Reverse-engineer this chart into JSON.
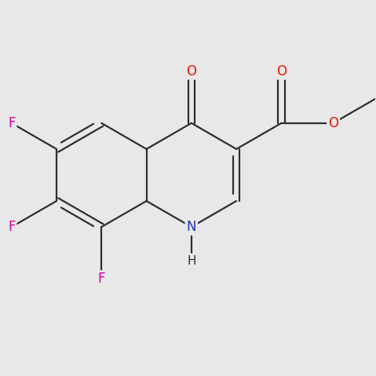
{
  "background_color": "#e8e8e8",
  "bond_color": "#2d2d2d",
  "atom_colors": {
    "O": "#ee1100",
    "N": "#2233bb",
    "F": "#cc00aa",
    "C": "#2d2d2d"
  },
  "figsize": [
    4.79,
    4.79
  ],
  "dpi": 100
}
